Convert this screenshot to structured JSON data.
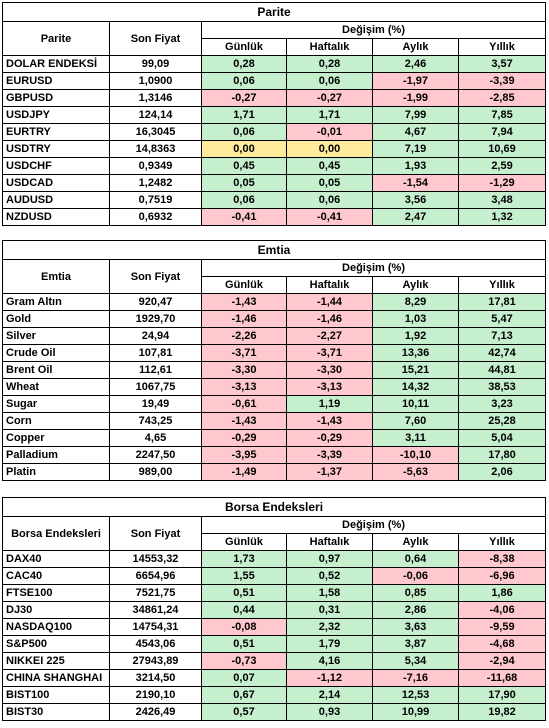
{
  "tables": [
    {
      "title": "Parite",
      "columns": [
        "Parite",
        "Son Fiyat"
      ],
      "change_header": "Değişim (%)",
      "periods": [
        "Günlük",
        "Haftalık",
        "Aylık",
        "Yıllık"
      ],
      "rows": [
        [
          "DOLAR ENDEKSİ",
          "99,09",
          "0,28",
          "0,28",
          "2,46",
          "3,57"
        ],
        [
          "EURUSD",
          "1,0900",
          "0,06",
          "0,06",
          "-1,97",
          "-3,39"
        ],
        [
          "GBPUSD",
          "1,3146",
          "-0,27",
          "-0,27",
          "-1,99",
          "-2,85"
        ],
        [
          "USDJPY",
          "124,14",
          "1,71",
          "1,71",
          "7,99",
          "7,85"
        ],
        [
          "EURTRY",
          "16,3045",
          "0,06",
          "-0,01",
          "4,67",
          "7,94"
        ],
        [
          "USDTRY",
          "14,8363",
          "0,00",
          "0,00",
          "7,19",
          "10,69"
        ],
        [
          "USDCHF",
          "0,9349",
          "0,45",
          "0,45",
          "1,93",
          "2,59"
        ],
        [
          "USDCAD",
          "1,2482",
          "0,05",
          "0,05",
          "-1,54",
          "-1,29"
        ],
        [
          "AUDUSD",
          "0,7519",
          "0,06",
          "0,06",
          "3,56",
          "3,48"
        ],
        [
          "NZDUSD",
          "0,6932",
          "-0,41",
          "-0,41",
          "2,47",
          "1,32"
        ]
      ]
    },
    {
      "title": "Emtia",
      "columns": [
        "Emtia",
        "Son Fiyat"
      ],
      "change_header": "Değişim (%)",
      "periods": [
        "Günlük",
        "Haftalık",
        "Aylık",
        "Yıllık"
      ],
      "rows": [
        [
          "Gram Altın",
          "920,47",
          "-1,43",
          "-1,44",
          "8,29",
          "17,81"
        ],
        [
          "Gold",
          "1929,70",
          "-1,46",
          "-1,46",
          "1,03",
          "5,47"
        ],
        [
          "Silver",
          "24,94",
          "-2,26",
          "-2,27",
          "1,92",
          "7,13"
        ],
        [
          "Crude Oil",
          "107,81",
          "-3,71",
          "-3,71",
          "13,36",
          "42,74"
        ],
        [
          "Brent Oil",
          "112,61",
          "-3,30",
          "-3,30",
          "15,21",
          "44,81"
        ],
        [
          "Wheat",
          "1067,75",
          "-3,13",
          "-3,13",
          "14,32",
          "38,53"
        ],
        [
          "Sugar",
          "19,49",
          "-0,61",
          "1,19",
          "10,11",
          "3,23"
        ],
        [
          "Corn",
          "743,25",
          "-1,43",
          "-1,43",
          "7,60",
          "25,28"
        ],
        [
          "Copper",
          "4,65",
          "-0,29",
          "-0,29",
          "3,11",
          "5,04"
        ],
        [
          "Palladium",
          "2247,50",
          "-3,95",
          "-3,39",
          "-10,10",
          "17,80"
        ],
        [
          "Platin",
          "989,00",
          "-1,49",
          "-1,37",
          "-5,63",
          "2,06"
        ]
      ]
    },
    {
      "title": "Borsa Endeksleri",
      "columns": [
        "Borsa Endeksleri",
        "Son Fiyat"
      ],
      "change_header": "Değişim (%)",
      "periods": [
        "Günlük",
        "Haftalık",
        "Aylık",
        "Yıllık"
      ],
      "rows": [
        [
          "DAX40",
          "14553,32",
          "1,73",
          "0,97",
          "0,64",
          "-8,38"
        ],
        [
          "CAC40",
          "6654,96",
          "1,55",
          "0,52",
          "-0,06",
          "-6,96"
        ],
        [
          "FTSE100",
          "7521,75",
          "0,51",
          "1,58",
          "0,85",
          "1,86"
        ],
        [
          "DJ30",
          "34861,24",
          "0,44",
          "0,31",
          "2,86",
          "-4,06"
        ],
        [
          "NASDAQ100",
          "14754,31",
          "-0,08",
          "2,32",
          "3,63",
          "-9,59"
        ],
        [
          "S&P500",
          "4543,06",
          "0,51",
          "1,79",
          "3,87",
          "-4,68"
        ],
        [
          "NIKKEI 225",
          "27943,89",
          "-0,73",
          "4,16",
          "5,34",
          "-2,94"
        ],
        [
          "CHINA SHANGHAI",
          "3214,50",
          "0,07",
          "-1,12",
          "-7,16",
          "-11,68"
        ],
        [
          "BIST100",
          "2190,10",
          "0,67",
          "2,14",
          "12,53",
          "17,90"
        ],
        [
          "BIST30",
          "2426,49",
          "0,57",
          "0,93",
          "10,99",
          "19,82"
        ]
      ]
    }
  ]
}
